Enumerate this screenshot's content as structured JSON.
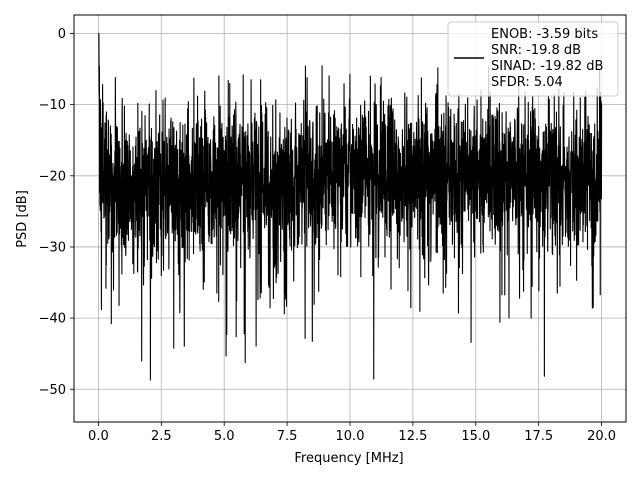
{
  "chart_data": {
    "type": "line",
    "xlabel": "Frequency [MHz]",
    "ylabel": "PSD [dB]",
    "xlim": [
      -0.97,
      20.97
    ],
    "ylim": [
      -54.6,
      2.6
    ],
    "xticks": [
      0.0,
      2.5,
      5.0,
      7.5,
      10.0,
      12.5,
      15.0,
      17.5,
      20.0
    ],
    "xtick_labels": [
      "0.0",
      "2.5",
      "5.0",
      "7.5",
      "10.0",
      "12.5",
      "15.0",
      "17.5",
      "20.0"
    ],
    "yticks": [
      0,
      -10,
      -20,
      -30,
      -40,
      -50
    ],
    "ytick_labels": [
      "0",
      "−10",
      "−20",
      "−30",
      "−40",
      "−50"
    ],
    "grid": true,
    "legend_position": "top-right",
    "legend": [
      "ENOB: -3.59 bits",
      "SNR: -19.8 dB",
      "SINAD: -19.82 dB",
      "SFDR: 5.04"
    ],
    "series": [
      {
        "color": "#000000",
        "description_of_shape": "dense noise trace between about -10 and -35 dB",
        "x": [
          0.0,
          0.03,
          0.06,
          0.1,
          0.2,
          0.3,
          0.4,
          0.6,
          0.8,
          1.0,
          1.2,
          1.5,
          2.0,
          2.5,
          3.0,
          3.5,
          4.0,
          4.5,
          5.0,
          5.5,
          6.0,
          6.5,
          7.0,
          7.5,
          8.0,
          8.5,
          9.0,
          9.5,
          10.0,
          10.5,
          11.0,
          11.5,
          12.0,
          12.5,
          13.0,
          13.5,
          14.0,
          14.5,
          15.0,
          15.5,
          16.0,
          16.5,
          17.0,
          17.5,
          18.0,
          18.5,
          19.0,
          19.5,
          20.0
        ],
        "y": [
          0.0,
          -8.0,
          -15.0,
          -18.5,
          -20.0,
          -21.0,
          -22.0,
          -21.5,
          -22.0,
          -22.5,
          -21.0,
          -21.5,
          -22.0,
          -21.0,
          -22.0,
          -21.0,
          -21.5,
          -21.0,
          -20.5,
          -21.0,
          -20.0,
          -20.5,
          -21.0,
          -20.0,
          -19.5,
          -20.0,
          -20.5,
          -19.5,
          -20.0,
          -19.5,
          -20.0,
          -19.0,
          -20.0,
          -19.5,
          -20.0,
          -19.0,
          -20.5,
          -19.5,
          -20.0,
          -19.5,
          -20.0,
          -20.5,
          -19.5,
          -20.0,
          -19.5,
          -20.0,
          -20.5,
          -20.0,
          -20.0
        ]
      }
    ]
  }
}
